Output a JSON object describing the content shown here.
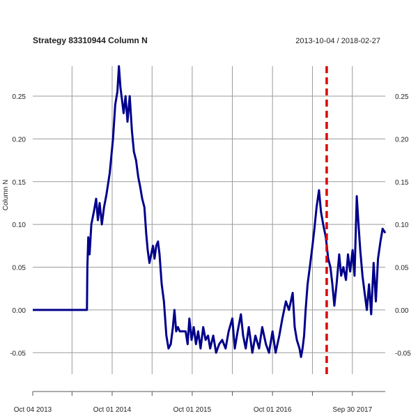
{
  "chart_data": {
    "type": "line",
    "title": "Strategy 83310944 Column N",
    "date_range": "2013-10-04 / 2018-02-27",
    "ylabel": "Column N",
    "xlabel": "",
    "x_range": [
      "2013-10-04",
      "2018-02-27"
    ],
    "ylim": [
      -0.075,
      0.285
    ],
    "y_ticks": [
      -0.05,
      0.0,
      0.05,
      0.1,
      0.15,
      0.2,
      0.25
    ],
    "y_tick_labels": [
      "-0.05",
      "0.00",
      "0.05",
      "0.10",
      "0.15",
      "0.20",
      "0.25"
    ],
    "x_tick_labels": [
      {
        "date": "2013-10-04",
        "label": "Oct 04 2013"
      },
      {
        "date": "2014-10-01",
        "label": "Oct 01 2014"
      },
      {
        "date": "2015-10-01",
        "label": "Oct 01 2015"
      },
      {
        "date": "2016-10-01",
        "label": "Oct 01 2016"
      },
      {
        "date": "2017-09-30",
        "label": "Sep 30 2017"
      }
    ],
    "x_minor_ticks": [
      "2014-04-01",
      "2015-04-01",
      "2016-04-01",
      "2017-04-01"
    ],
    "grid": true,
    "line_color": "#00008b",
    "marker_color": "#dd0000",
    "vertical_marker_date": "2017-06-05",
    "series": [
      {
        "values": [
          [
            "2013-10-04",
            0.0
          ],
          [
            "2014-06-08",
            0.0
          ],
          [
            "2014-06-10",
            0.05
          ],
          [
            "2014-06-14",
            0.085
          ],
          [
            "2014-06-20",
            0.065
          ],
          [
            "2014-06-28",
            0.1
          ],
          [
            "2014-07-10",
            0.115
          ],
          [
            "2014-07-20",
            0.13
          ],
          [
            "2014-07-28",
            0.105
          ],
          [
            "2014-08-05",
            0.125
          ],
          [
            "2014-08-15",
            0.1
          ],
          [
            "2014-08-25",
            0.12
          ],
          [
            "2014-09-05",
            0.135
          ],
          [
            "2014-09-20",
            0.16
          ],
          [
            "2014-10-05",
            0.2
          ],
          [
            "2014-10-15",
            0.24
          ],
          [
            "2014-10-25",
            0.255
          ],
          [
            "2014-11-01",
            0.285
          ],
          [
            "2014-11-08",
            0.26
          ],
          [
            "2014-11-15",
            0.245
          ],
          [
            "2014-11-22",
            0.23
          ],
          [
            "2014-12-01",
            0.25
          ],
          [
            "2014-12-10",
            0.22
          ],
          [
            "2014-12-20",
            0.25
          ],
          [
            "2014-12-30",
            0.21
          ],
          [
            "2015-01-08",
            0.185
          ],
          [
            "2015-01-18",
            0.175
          ],
          [
            "2015-01-28",
            0.155
          ],
          [
            "2015-02-05",
            0.145
          ],
          [
            "2015-02-15",
            0.13
          ],
          [
            "2015-02-25",
            0.12
          ],
          [
            "2015-03-05",
            0.09
          ],
          [
            "2015-03-12",
            0.07
          ],
          [
            "2015-03-20",
            0.055
          ],
          [
            "2015-03-28",
            0.065
          ],
          [
            "2015-04-05",
            0.075
          ],
          [
            "2015-04-12",
            0.06
          ],
          [
            "2015-04-20",
            0.075
          ],
          [
            "2015-04-28",
            0.08
          ],
          [
            "2015-05-05",
            0.065
          ],
          [
            "2015-05-15",
            0.03
          ],
          [
            "2015-05-25",
            0.01
          ],
          [
            "2015-06-05",
            -0.03
          ],
          [
            "2015-06-15",
            -0.045
          ],
          [
            "2015-06-25",
            -0.04
          ],
          [
            "2015-07-05",
            -0.02
          ],
          [
            "2015-07-12",
            0.0
          ],
          [
            "2015-07-20",
            -0.025
          ],
          [
            "2015-07-28",
            -0.02
          ],
          [
            "2015-08-05",
            -0.025
          ],
          [
            "2015-09-01",
            -0.025
          ],
          [
            "2015-09-10",
            -0.04
          ],
          [
            "2015-09-18",
            -0.01
          ],
          [
            "2015-09-28",
            -0.035
          ],
          [
            "2015-10-08",
            -0.02
          ],
          [
            "2015-10-18",
            -0.04
          ],
          [
            "2015-10-28",
            -0.025
          ],
          [
            "2015-11-08",
            -0.045
          ],
          [
            "2015-11-20",
            -0.02
          ],
          [
            "2015-12-01",
            -0.035
          ],
          [
            "2015-12-12",
            -0.03
          ],
          [
            "2015-12-22",
            -0.045
          ],
          [
            "2016-01-05",
            -0.03
          ],
          [
            "2016-01-18",
            -0.05
          ],
          [
            "2016-02-01",
            -0.04
          ],
          [
            "2016-02-15",
            -0.035
          ],
          [
            "2016-03-01",
            -0.045
          ],
          [
            "2016-03-15",
            -0.025
          ],
          [
            "2016-04-01",
            -0.01
          ],
          [
            "2016-04-12",
            -0.045
          ],
          [
            "2016-04-25",
            -0.025
          ],
          [
            "2016-05-10",
            -0.005
          ],
          [
            "2016-05-20",
            -0.03
          ],
          [
            "2016-06-01",
            -0.045
          ],
          [
            "2016-06-15",
            -0.02
          ],
          [
            "2016-07-01",
            -0.05
          ],
          [
            "2016-07-15",
            -0.03
          ],
          [
            "2016-08-01",
            -0.045
          ],
          [
            "2016-08-15",
            -0.02
          ],
          [
            "2016-09-01",
            -0.04
          ],
          [
            "2016-09-15",
            -0.05
          ],
          [
            "2016-10-01",
            -0.025
          ],
          [
            "2016-10-15",
            -0.05
          ],
          [
            "2016-11-01",
            -0.03
          ],
          [
            "2016-11-15",
            -0.01
          ],
          [
            "2016-12-01",
            0.01
          ],
          [
            "2016-12-15",
            0.0
          ],
          [
            "2017-01-01",
            0.02
          ],
          [
            "2017-01-10",
            -0.02
          ],
          [
            "2017-01-20",
            -0.035
          ],
          [
            "2017-02-01",
            -0.045
          ],
          [
            "2017-02-08",
            -0.055
          ],
          [
            "2017-02-15",
            -0.045
          ],
          [
            "2017-02-22",
            -0.03
          ],
          [
            "2017-03-01",
            0.0
          ],
          [
            "2017-03-10",
            0.03
          ],
          [
            "2017-03-20",
            0.05
          ],
          [
            "2017-04-01",
            0.075
          ],
          [
            "2017-04-10",
            0.095
          ],
          [
            "2017-04-20",
            0.12
          ],
          [
            "2017-05-01",
            0.14
          ],
          [
            "2017-05-10",
            0.115
          ],
          [
            "2017-05-20",
            0.1
          ],
          [
            "2017-06-01",
            0.085
          ],
          [
            "2017-06-12",
            0.06
          ],
          [
            "2017-06-22",
            0.05
          ],
          [
            "2017-07-01",
            0.03
          ],
          [
            "2017-07-10",
            0.005
          ],
          [
            "2017-07-20",
            0.03
          ],
          [
            "2017-08-01",
            0.065
          ],
          [
            "2017-08-10",
            0.04
          ],
          [
            "2017-08-20",
            0.05
          ],
          [
            "2017-09-01",
            0.035
          ],
          [
            "2017-09-10",
            0.065
          ],
          [
            "2017-09-20",
            0.045
          ],
          [
            "2017-10-01",
            0.07
          ],
          [
            "2017-10-10",
            0.04
          ],
          [
            "2017-10-20",
            0.133
          ],
          [
            "2017-10-28",
            0.1
          ],
          [
            "2017-11-05",
            0.07
          ],
          [
            "2017-11-15",
            0.04
          ],
          [
            "2017-11-25",
            0.02
          ],
          [
            "2017-12-05",
            0.0
          ],
          [
            "2017-12-15",
            0.03
          ],
          [
            "2017-12-25",
            -0.005
          ],
          [
            "2018-01-05",
            0.055
          ],
          [
            "2018-01-15",
            0.01
          ],
          [
            "2018-01-25",
            0.06
          ],
          [
            "2018-02-05",
            0.08
          ],
          [
            "2018-02-15",
            0.095
          ],
          [
            "2018-02-27",
            0.09
          ]
        ]
      }
    ]
  }
}
